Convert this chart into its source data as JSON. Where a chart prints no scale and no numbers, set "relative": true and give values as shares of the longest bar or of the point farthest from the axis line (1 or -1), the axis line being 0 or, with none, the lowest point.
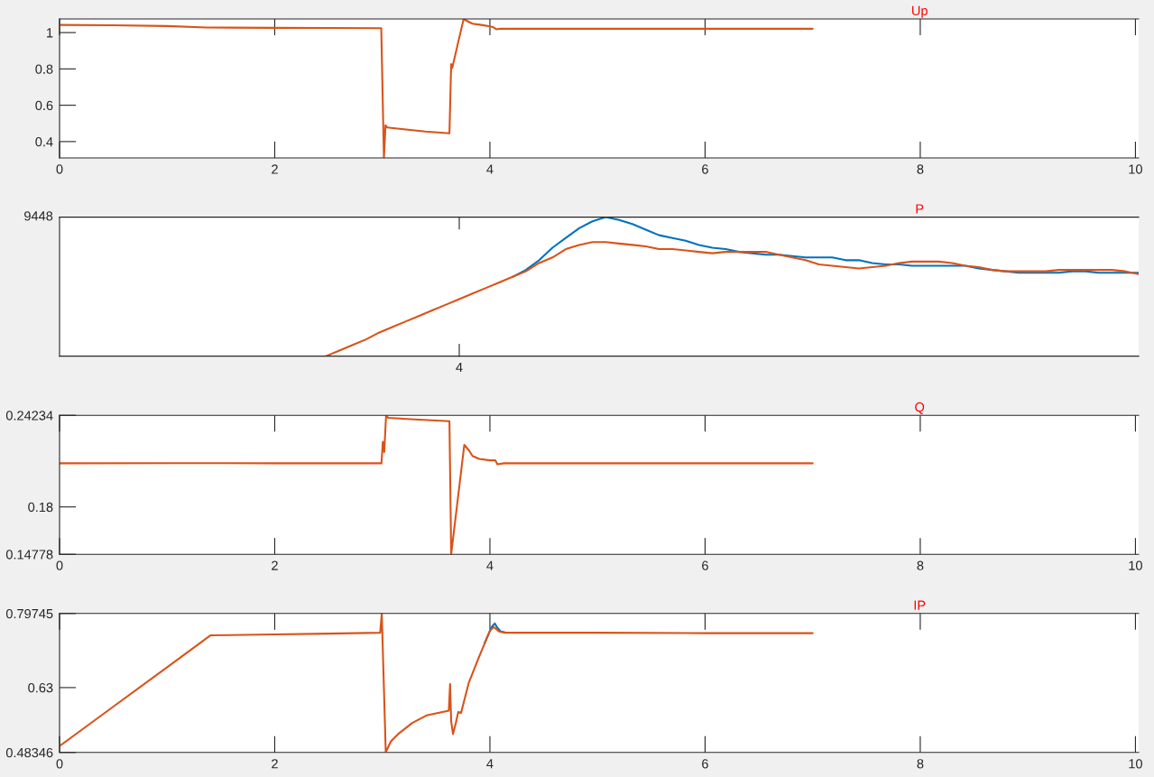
{
  "chart_data": [
    {
      "type": "line",
      "title": "Up",
      "xlim": [
        0,
        10.03
      ],
      "xticks": [
        0,
        2,
        4,
        6,
        8,
        10
      ],
      "ylim": [
        0.31,
        1.075
      ],
      "yticks": [
        0.4,
        0.6,
        0.8,
        1
      ],
      "series": [
        {
          "color": "#d95319",
          "x": [
            0,
            0.5,
            1,
            1.37,
            2,
            2.5,
            2.99,
            3.015,
            3.03,
            3.045,
            3.2,
            3.4,
            3.6,
            3.624,
            3.64,
            3.65,
            3.706,
            3.756,
            3.8,
            3.838,
            3.92,
            4,
            4.03,
            4.06,
            4.1,
            5,
            6,
            7
          ],
          "values": [
            1.042,
            1.04,
            1.036,
            1.028,
            1.026,
            1.025,
            1.024,
            0.31,
            0.49,
            0.478,
            0.468,
            0.455,
            0.447,
            0.446,
            0.826,
            0.805,
            0.949,
            1.075,
            1.06,
            1.049,
            1.042,
            1.034,
            1.03,
            1.018,
            1.022,
            1.021,
            1.021,
            1.021
          ]
        }
      ]
    },
    {
      "type": "line",
      "title": "P",
      "relative": true,
      "annotations": [
        "9448",
        "4"
      ],
      "categories": [
        null,
        null,
        null,
        null,
        null,
        null,
        null,
        null,
        null,
        null,
        null,
        null,
        null,
        null,
        null,
        null,
        null,
        null,
        null,
        null,
        null,
        null,
        null,
        null,
        null,
        null,
        null,
        null,
        null,
        null,
        null,
        null,
        null,
        null,
        null,
        null,
        null,
        null,
        null,
        null,
        null,
        null,
        null,
        null,
        null,
        null,
        null,
        null,
        null,
        null,
        null,
        null,
        null,
        null,
        null,
        null,
        null,
        null,
        null,
        null,
        null,
        null,
        null,
        null,
        null,
        null,
        null,
        null,
        null,
        null,
        null,
        null,
        null,
        null,
        null,
        null,
        null,
        null,
        null,
        null,
        null,
        null
      ],
      "series": [
        {
          "color": "#0072bd",
          "values": [
            null,
            null,
            null,
            null,
            null,
            null,
            null,
            null,
            null,
            null,
            null,
            null,
            null,
            null,
            null,
            null,
            null,
            null,
            null,
            null,
            null,
            null,
            null,
            null,
            null,
            null,
            null,
            null,
            null,
            null,
            null,
            null,
            null,
            null,
            0.57,
            0.62,
            0.69,
            0.78,
            0.85,
            0.92,
            0.97,
            1.0,
            0.98,
            0.95,
            0.91,
            0.87,
            0.85,
            0.83,
            0.8,
            0.78,
            0.77,
            0.75,
            0.74,
            0.73,
            0.73,
            0.72,
            0.71,
            0.71,
            0.71,
            0.69,
            0.69,
            0.67,
            0.66,
            0.66,
            0.65,
            0.65,
            0.65,
            0.65,
            0.65,
            0.63,
            0.62,
            0.61,
            0.6,
            0.6,
            0.6,
            0.6,
            0.61,
            0.61,
            0.6,
            0.6,
            0.6,
            0.6
          ]
        },
        {
          "color": "#d95319",
          "values": [
            null,
            null,
            null,
            null,
            null,
            null,
            null,
            null,
            null,
            null,
            null,
            null,
            null,
            null,
            null,
            null,
            null,
            null,
            null,
            null,
            0.0,
            0.04,
            0.08,
            0.12,
            0.17,
            0.21,
            0.25,
            0.29,
            0.33,
            0.37,
            0.41,
            0.45,
            0.49,
            0.53,
            0.57,
            0.61,
            0.67,
            0.71,
            0.77,
            0.8,
            0.82,
            0.82,
            0.81,
            0.8,
            0.79,
            0.77,
            0.77,
            0.76,
            0.75,
            0.74,
            0.75,
            0.75,
            0.75,
            0.75,
            0.73,
            0.71,
            0.69,
            0.66,
            0.65,
            0.64,
            0.63,
            0.64,
            0.65,
            0.67,
            0.68,
            0.68,
            0.68,
            0.67,
            0.65,
            0.64,
            0.62,
            0.61,
            0.61,
            0.61,
            0.61,
            0.62,
            0.62,
            0.62,
            0.62,
            0.62,
            0.61,
            0.59
          ]
        }
      ]
    },
    {
      "type": "line",
      "title": "Q",
      "xlim": [
        0,
        10.03
      ],
      "xticks": [
        0,
        2,
        4,
        6,
        8,
        10
      ],
      "ylim": [
        0.14778,
        0.24234
      ],
      "yticks": [
        0.14778,
        0.18,
        0.24234
      ],
      "series": [
        {
          "color": "#d95319",
          "x": [
            0,
            1,
            2,
            2.992,
            3.005,
            3.018,
            3.035,
            3.055,
            3.3,
            3.624,
            3.64,
            3.706,
            3.762,
            3.805,
            3.838,
            3.9,
            4,
            4.05,
            4.07,
            4.13,
            5,
            6,
            7
          ],
          "values": [
            0.2097,
            0.2098,
            0.2097,
            0.2097,
            0.2243,
            0.2173,
            0.2423,
            0.2406,
            0.2395,
            0.2383,
            0.1478,
            0.1881,
            0.2222,
            0.2185,
            0.2147,
            0.2127,
            0.2117,
            0.2117,
            0.209,
            0.2097,
            0.2097,
            0.2097,
            0.2097
          ]
        }
      ]
    },
    {
      "type": "line",
      "title": "IP",
      "xlim": [
        0,
        10.03
      ],
      "xticks": [
        0,
        2,
        4,
        6,
        8,
        10
      ],
      "ylim": [
        0.48346,
        0.79745
      ],
      "yticks": [
        0.48346,
        0.63,
        0.79745
      ],
      "series": [
        {
          "color": "#0072bd",
          "x": [
            3.95,
            4,
            4.02,
            4.045,
            4.07,
            4.1,
            4.15
          ],
          "values": [
            0.73,
            0.758,
            0.768,
            0.775,
            0.765,
            0.757,
            0.754
          ]
        },
        {
          "color": "#d95319",
          "x": [
            0,
            0.5,
            1,
            1.402,
            2,
            2.5,
            2.98,
            2.995,
            3.032,
            3.081,
            3.147,
            3.278,
            3.41,
            3.618,
            3.63,
            3.64,
            3.657,
            3.683,
            3.706,
            3.732,
            3.805,
            3.9,
            4,
            4.035,
            4.085,
            4.135,
            5,
            6,
            7
          ],
          "values": [
            0.498,
            0.587,
            0.676,
            0.748,
            0.75,
            0.752,
            0.754,
            0.797,
            0.484,
            0.509,
            0.525,
            0.55,
            0.567,
            0.578,
            0.638,
            0.554,
            0.525,
            0.55,
            0.575,
            0.573,
            0.642,
            0.7,
            0.758,
            0.767,
            0.757,
            0.754,
            0.754,
            0.753,
            0.753
          ]
        }
      ]
    }
  ]
}
